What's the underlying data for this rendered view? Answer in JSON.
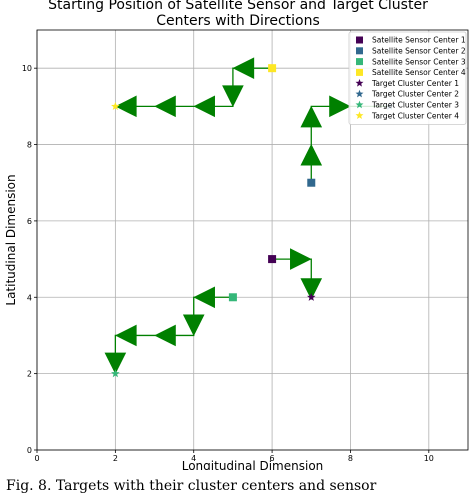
{
  "colors": {
    "sensor1": "#440154",
    "sensor2": "#31688e",
    "sensor3": "#35b779",
    "sensor4": "#fde725",
    "arrow": "#008000",
    "path": "#008000",
    "grid": "#b0b0b0"
  },
  "caption": "Fig. 8. Targets with their cluster centers and sensor",
  "chart_data": {
    "type": "scatter",
    "title_lines": [
      "Starting Position of Satellite Sensor and Target Cluster",
      "Centers with Directions"
    ],
    "xlabel": "Longitudinal Dimension",
    "ylabel": "Latitudinal Dimension",
    "xlim": [
      0,
      11
    ],
    "ylim": [
      0,
      11
    ],
    "xticks": [
      0,
      2,
      4,
      6,
      8,
      10
    ],
    "yticks": [
      0,
      2,
      4,
      6,
      8,
      10
    ],
    "grid": true,
    "legend_position": "top-right",
    "legend": [
      "Satellite Sensor Center 1",
      "Satellite Sensor Center 2",
      "Satellite Sensor Center 3",
      "Satellite Sensor Center 4",
      "Target Cluster Center 1",
      "Target Cluster Center 2",
      "Target Cluster Center 3",
      "Target Cluster Center 4"
    ],
    "sensors": [
      {
        "x": 6,
        "y": 5,
        "color_key": "sensor1"
      },
      {
        "x": 7,
        "y": 7,
        "color_key": "sensor2"
      },
      {
        "x": 5,
        "y": 4,
        "color_key": "sensor3"
      },
      {
        "x": 6,
        "y": 10,
        "color_key": "sensor4"
      }
    ],
    "targets": [
      {
        "x": 7,
        "y": 4,
        "color_key": "sensor1"
      },
      {
        "x": 9,
        "y": 9,
        "color_key": "sensor2"
      },
      {
        "x": 2,
        "y": 2,
        "color_key": "sensor3"
      },
      {
        "x": 2,
        "y": 9,
        "color_key": "sensor4"
      }
    ],
    "paths": [
      [
        [
          6,
          5
        ],
        [
          7,
          5
        ],
        [
          7,
          4
        ]
      ],
      [
        [
          7,
          7
        ],
        [
          7,
          9
        ],
        [
          9,
          9
        ]
      ],
      [
        [
          5,
          4
        ],
        [
          4,
          4
        ],
        [
          4,
          3
        ],
        [
          2,
          3
        ],
        [
          2,
          2
        ]
      ],
      [
        [
          6,
          10
        ],
        [
          5,
          10
        ],
        [
          5,
          9
        ],
        [
          2,
          9
        ]
      ]
    ],
    "arrows": [
      {
        "x": 6.7,
        "y": 5,
        "dir": "right"
      },
      {
        "x": 7,
        "y": 4.25,
        "dir": "down"
      },
      {
        "x": 7,
        "y": 7.7,
        "dir": "up"
      },
      {
        "x": 7,
        "y": 8.7,
        "dir": "up"
      },
      {
        "x": 7.7,
        "y": 9,
        "dir": "right"
      },
      {
        "x": 4.3,
        "y": 4,
        "dir": "left"
      },
      {
        "x": 4,
        "y": 3.3,
        "dir": "down"
      },
      {
        "x": 3.3,
        "y": 3,
        "dir": "left"
      },
      {
        "x": 2.3,
        "y": 3,
        "dir": "left"
      },
      {
        "x": 2,
        "y": 2.3,
        "dir": "down"
      },
      {
        "x": 5.3,
        "y": 10,
        "dir": "left"
      },
      {
        "x": 5,
        "y": 9.3,
        "dir": "down"
      },
      {
        "x": 4.3,
        "y": 9,
        "dir": "left"
      },
      {
        "x": 3.3,
        "y": 9,
        "dir": "left"
      },
      {
        "x": 2.3,
        "y": 9,
        "dir": "left"
      }
    ]
  }
}
